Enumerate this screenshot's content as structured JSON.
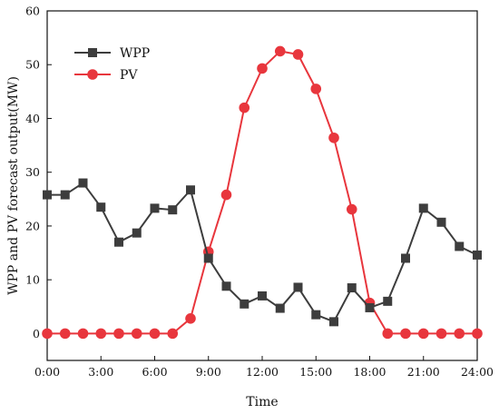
{
  "chart_data": {
    "type": "line",
    "title": "",
    "xlabel": "Time",
    "ylabel": "WPP and PV forecast output(MW)",
    "x": [
      0,
      1,
      2,
      3,
      4,
      5,
      6,
      7,
      8,
      9,
      10,
      11,
      12,
      13,
      14,
      15,
      16,
      17,
      18,
      19,
      20,
      21,
      22,
      23,
      24
    ],
    "x_tick_values": [
      0,
      3,
      6,
      9,
      12,
      15,
      18,
      21,
      24
    ],
    "x_tick_labels": [
      "0:00",
      "3:00",
      "6:00",
      "9:00",
      "12:00",
      "15:00",
      "18:00",
      "21:00",
      "24:00"
    ],
    "xlim": [
      0,
      24
    ],
    "ylim": [
      -5,
      60
    ],
    "y_tick_values": [
      0,
      10,
      20,
      30,
      40,
      50,
      60
    ],
    "y_tick_labels": [
      "0",
      "10",
      "20",
      "30",
      "40",
      "50",
      "60"
    ],
    "grid": false,
    "legend_position": "top-left",
    "series": [
      {
        "name": "WPP",
        "color": "#3d3d3d",
        "marker": "square",
        "values": [
          25.8,
          25.8,
          28.0,
          23.5,
          17.0,
          18.7,
          23.3,
          23.0,
          26.7,
          14.0,
          8.8,
          5.5,
          7.0,
          4.7,
          8.6,
          3.5,
          2.2,
          8.5,
          4.8,
          6.0,
          14.0,
          23.3,
          20.7,
          16.2,
          14.6
        ]
      },
      {
        "name": "PV",
        "color": "#e8363d",
        "marker": "circle",
        "values": [
          0,
          0,
          0,
          0,
          0,
          0,
          0,
          0,
          2.8,
          15.2,
          25.8,
          42.0,
          49.3,
          52.5,
          51.9,
          45.5,
          36.4,
          23.1,
          5.7,
          0,
          0,
          0,
          0,
          0,
          0
        ]
      }
    ]
  }
}
